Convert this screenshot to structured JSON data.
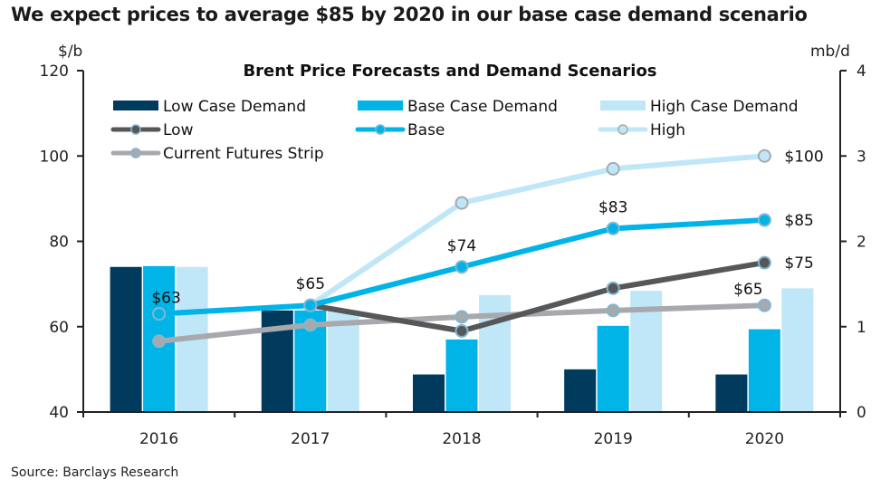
{
  "headline": "We expect prices to average $85 by 2020 in our base case demand scenario",
  "source": "Source: Barclays Research",
  "chart_data": {
    "type": "bar+line",
    "title": "Brent Price Forecasts  and Demand Scenarios",
    "categories": [
      "2016",
      "2017",
      "2018",
      "2019",
      "2020"
    ],
    "left_axis": {
      "label": "$/b",
      "ylim": [
        40,
        120
      ],
      "ticks": [
        "40",
        "60",
        "80",
        "100",
        "120"
      ]
    },
    "right_axis": {
      "label": "mb/d",
      "ylim": [
        0,
        4
      ],
      "ticks": [
        "0",
        "1",
        "2",
        "3",
        "4"
      ]
    },
    "bar_series": [
      {
        "name": "Low Case Demand",
        "axis": "right",
        "color": "#003a5d",
        "values": [
          1.7,
          1.19,
          0.44,
          0.5,
          0.44
        ]
      },
      {
        "name": "Base Case Demand",
        "axis": "right",
        "color": "#00b4e8",
        "values": [
          1.71,
          1.19,
          0.85,
          1.01,
          0.97
        ]
      },
      {
        "name": "High Case Demand",
        "axis": "right",
        "color": "#c0e7f7",
        "values": [
          1.7,
          1.19,
          1.37,
          1.42,
          1.45
        ]
      }
    ],
    "line_series": [
      {
        "name": "Low",
        "axis": "left",
        "color": "#555759",
        "marker": "#555759",
        "values": [
          null,
          65,
          59,
          69,
          75
        ]
      },
      {
        "name": "Base",
        "axis": "left",
        "color": "#00b4e8",
        "marker": "#00b4e8",
        "values": [
          63,
          65,
          74,
          83,
          85
        ]
      },
      {
        "name": "High",
        "axis": "left",
        "color": "#c0e7f7",
        "marker": "#c0e7f7",
        "values": [
          63,
          65,
          89,
          97,
          100
        ]
      },
      {
        "name": "Current Futures Strip",
        "axis": "left",
        "color": "#a7a9ac",
        "marker": "#a7a9ac",
        "values": [
          56.6,
          60.4,
          62.3,
          63.8,
          65
        ]
      }
    ],
    "annotations": [
      {
        "text": "$63",
        "series": "Base",
        "index": 0
      },
      {
        "text": "$65",
        "series": "Base",
        "index": 1
      },
      {
        "text": "$74",
        "series": "Base",
        "index": 2
      },
      {
        "text": "$83",
        "series": "Base",
        "index": 3
      },
      {
        "text": "$100",
        "series": "High",
        "index": 4
      },
      {
        "text": "$85",
        "series": "Base",
        "index": 4
      },
      {
        "text": "$75",
        "series": "Low",
        "index": 4
      },
      {
        "text": "$65",
        "series": "Current Futures Strip",
        "index": 4
      }
    ],
    "legend": "top-inside",
    "grid": false
  }
}
